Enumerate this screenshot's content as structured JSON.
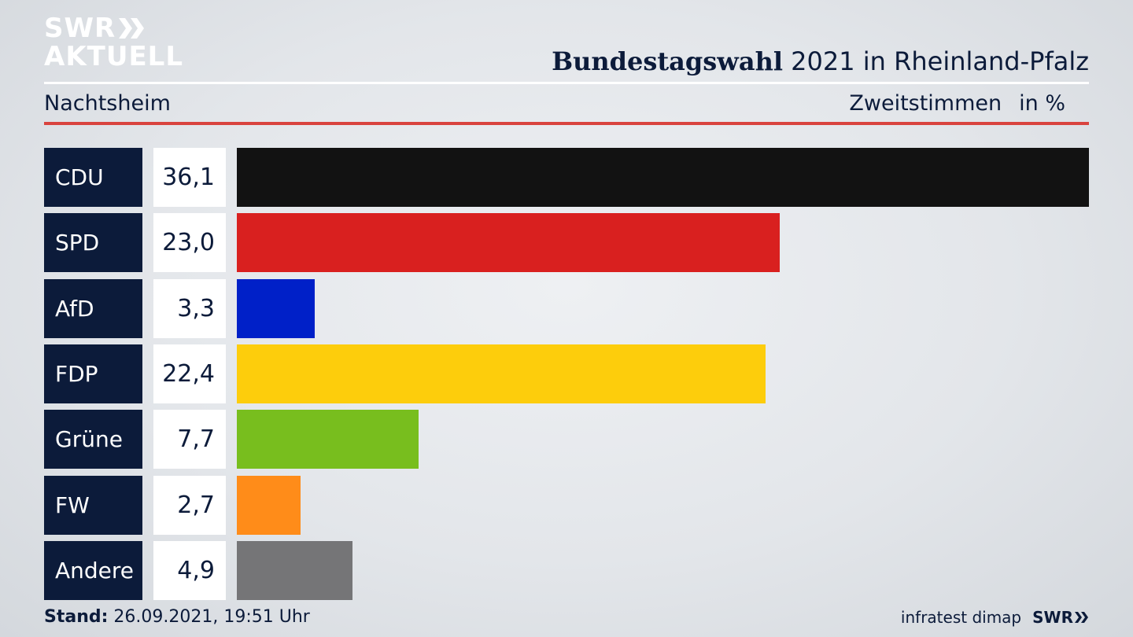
{
  "logo": {
    "line1": "SWR",
    "line2": "AKTUELL"
  },
  "header": {
    "title_bold": "Bundestagswahl",
    "title_rest": " 2021 in Rheinland-Pfalz",
    "location": "Nachtsheim",
    "vote_type": "Zweitstimmen",
    "unit": "in %"
  },
  "chart_data": {
    "type": "bar",
    "orientation": "horizontal",
    "categories": [
      "CDU",
      "SPD",
      "AfD",
      "FDP",
      "Grüne",
      "FW",
      "Andere"
    ],
    "values": [
      36.1,
      23.0,
      3.3,
      22.4,
      7.7,
      2.7,
      4.9
    ],
    "value_labels": [
      "36,1",
      "23,0",
      "3,3",
      "22,4",
      "7,7",
      "2,7",
      "4,9"
    ],
    "colors": [
      "#121212",
      "#d9201f",
      "#0020c8",
      "#fdcd0c",
      "#78be1e",
      "#ff8c19",
      "#757577"
    ],
    "xlim": [
      0,
      36.1
    ],
    "grid": false,
    "legend": "none"
  },
  "footer": {
    "stand_label": "Stand:",
    "stand_value": " 26.09.2021, 19:51 Uhr",
    "source": "infratest dimap",
    "broadcaster": "SWR"
  }
}
